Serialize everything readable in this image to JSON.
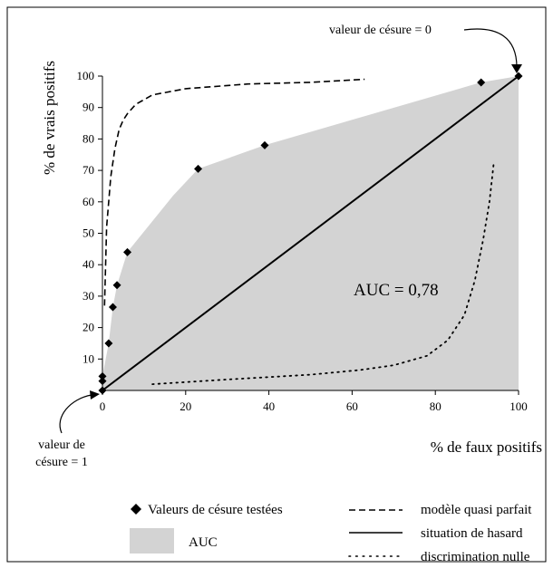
{
  "chart_data": {
    "type": "line",
    "xlabel": "% de faux positifs",
    "ylabel": "% de vrais positifs",
    "xlim": [
      0,
      100
    ],
    "ylim": [
      0,
      100
    ],
    "x_ticks": [
      0,
      20,
      40,
      60,
      80,
      100
    ],
    "y_ticks": [
      10,
      20,
      30,
      40,
      50,
      60,
      70,
      80,
      90,
      100
    ],
    "grid": false,
    "legend_position": "bottom",
    "auc_label": "AUC = 0,78",
    "annotations": {
      "top": "valeur de césure = 0",
      "bottom_line1": "valeur de",
      "bottom_line2": "césure = 1"
    },
    "series": [
      {
        "name": "Valeurs de césure testées",
        "kind": "scatter",
        "marker": "diamond",
        "x": [
          0,
          0,
          0,
          1.5,
          2.5,
          3.5,
          6,
          23,
          39,
          91,
          100
        ],
        "y": [
          0,
          3,
          4.5,
          15,
          26.5,
          33.5,
          44,
          70.5,
          78,
          98,
          100
        ]
      },
      {
        "name": "AUC",
        "kind": "area",
        "color": "#d3d3d3",
        "x": [
          0,
          0,
          0,
          1.5,
          2.5,
          3.5,
          6,
          17,
          23,
          39,
          91,
          100,
          100
        ],
        "y": [
          0,
          3,
          4.5,
          15,
          26.5,
          33.5,
          44,
          62,
          70.5,
          78,
          98,
          100,
          0
        ]
      },
      {
        "name": "modèle quasi parfait",
        "kind": "line",
        "style": "dashed",
        "x": [
          0.5,
          1,
          2,
          3,
          4,
          5,
          6,
          8,
          12,
          20,
          35,
          50,
          63
        ],
        "y": [
          27,
          52,
          68,
          77,
          83,
          86,
          88,
          91,
          94,
          96,
          97.5,
          98,
          99
        ]
      },
      {
        "name": "situation de hasard",
        "kind": "line",
        "style": "solid",
        "x": [
          0,
          100
        ],
        "y": [
          0,
          100
        ]
      },
      {
        "name": "discrimination nulle",
        "kind": "line",
        "style": "dotted",
        "x": [
          12,
          30,
          50,
          62,
          70,
          78,
          83,
          87,
          89.5,
          91.5,
          93,
          94
        ],
        "y": [
          2,
          3.5,
          5,
          6.5,
          8,
          11,
          16,
          24,
          35,
          48,
          60,
          72
        ]
      }
    ]
  }
}
